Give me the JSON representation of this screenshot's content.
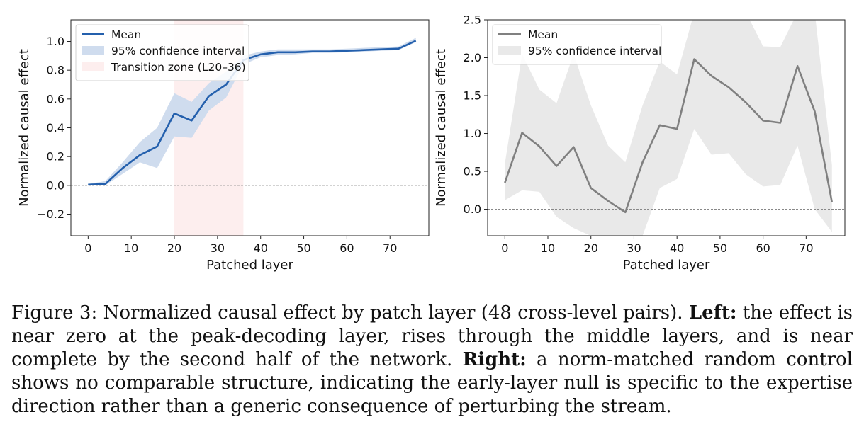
{
  "figure": {
    "caption": {
      "label": "Figure 3:",
      "text1": "Normalized causal effect by patch layer (48 cross-level pairs).",
      "left_label": "Left:",
      "text2": "the effect is near zero at the peak-decoding layer, rises through the middle layers, and is near complete by the second half of the network.",
      "right_label": "Right:",
      "text3": "a norm-matched random control shows no comparable structure, indicating the early-layer null is specific to the expertise direction rather than a generic consequence of perturbing the stream."
    }
  },
  "chart_data": [
    {
      "type": "line",
      "xlabel": "Patched layer",
      "ylabel": "Normalized causal effect",
      "xlim": [
        -4,
        79
      ],
      "ylim": [
        -0.35,
        1.15
      ],
      "xticks": [
        0,
        10,
        20,
        30,
        40,
        50,
        60,
        70
      ],
      "yticks": [
        -0.2,
        0.0,
        0.2,
        0.4,
        0.6,
        0.8,
        1.0
      ],
      "ytick_labels": [
        "−0.2",
        "0.0",
        "0.2",
        "0.4",
        "0.6",
        "0.8",
        "1.0"
      ],
      "reference_line_y": 0,
      "shaded_region": {
        "label": "Transition zone (L20–36)",
        "x": [
          20,
          36
        ],
        "color": "#fdeeee"
      },
      "series": [
        {
          "name": "Mean",
          "color": "#2460ad",
          "x": [
            0,
            4,
            8,
            12,
            16,
            20,
            24,
            28,
            32,
            36,
            40,
            44,
            48,
            52,
            56,
            60,
            64,
            68,
            72,
            76
          ],
          "values": [
            0.005,
            0.01,
            0.12,
            0.21,
            0.27,
            0.5,
            0.45,
            0.62,
            0.7,
            0.87,
            0.91,
            0.925,
            0.925,
            0.93,
            0.93,
            0.935,
            0.94,
            0.945,
            0.95,
            1.005
          ],
          "ci_lower": [
            0.0,
            0.0,
            0.08,
            0.16,
            0.12,
            0.34,
            0.33,
            0.52,
            0.61,
            0.84,
            0.89,
            0.905,
            0.91,
            0.92,
            0.92,
            0.925,
            0.93,
            0.935,
            0.94,
            0.995
          ],
          "ci_upper": [
            0.01,
            0.03,
            0.16,
            0.3,
            0.4,
            0.64,
            0.58,
            0.71,
            0.79,
            0.9,
            0.93,
            0.945,
            0.945,
            0.945,
            0.945,
            0.95,
            0.955,
            0.96,
            0.965,
            1.025
          ]
        }
      ],
      "ci_label": "95% confidence interval",
      "ci_color": "#cfdcee",
      "legend": "top-left"
    },
    {
      "type": "line",
      "xlabel": "Patched layer",
      "ylabel": "Normalized causal effect",
      "xlim": [
        -4,
        79
      ],
      "ylim": [
        -0.35,
        2.5
      ],
      "xticks": [
        0,
        10,
        20,
        30,
        40,
        50,
        60,
        70
      ],
      "yticks": [
        0.0,
        0.5,
        1.0,
        1.5,
        2.0,
        2.5
      ],
      "ytick_labels": [
        "0.0",
        "0.5",
        "1.0",
        "1.5",
        "2.0",
        "2.5"
      ],
      "reference_line_y": 0,
      "series": [
        {
          "name": "Mean",
          "color": "#808080",
          "x": [
            0,
            4,
            8,
            12,
            16,
            20,
            24,
            28,
            32,
            36,
            40,
            44,
            48,
            52,
            56,
            60,
            64,
            68,
            72,
            76
          ],
          "values": [
            0.35,
            1.01,
            0.83,
            0.57,
            0.82,
            0.28,
            0.11,
            -0.04,
            0.62,
            1.11,
            1.06,
            1.98,
            1.76,
            1.61,
            1.41,
            1.17,
            1.14,
            1.89,
            1.29,
            0.09
          ],
          "ci_lower": [
            0.12,
            0.25,
            0.23,
            -0.1,
            -0.25,
            -0.35,
            -0.35,
            -0.35,
            -0.35,
            0.28,
            0.4,
            1.06,
            0.72,
            0.74,
            0.46,
            0.3,
            0.32,
            0.84,
            0.0,
            -0.3
          ],
          "ci_upper": [
            0.6,
            2.05,
            1.58,
            1.4,
            2.05,
            1.37,
            0.84,
            0.62,
            1.37,
            1.95,
            1.78,
            2.6,
            2.6,
            2.6,
            2.6,
            2.15,
            2.14,
            2.6,
            2.6,
            0.58
          ]
        }
      ],
      "ci_label": "95% confidence interval",
      "ci_color": "#e9e9e9",
      "legend": "top-left"
    }
  ]
}
